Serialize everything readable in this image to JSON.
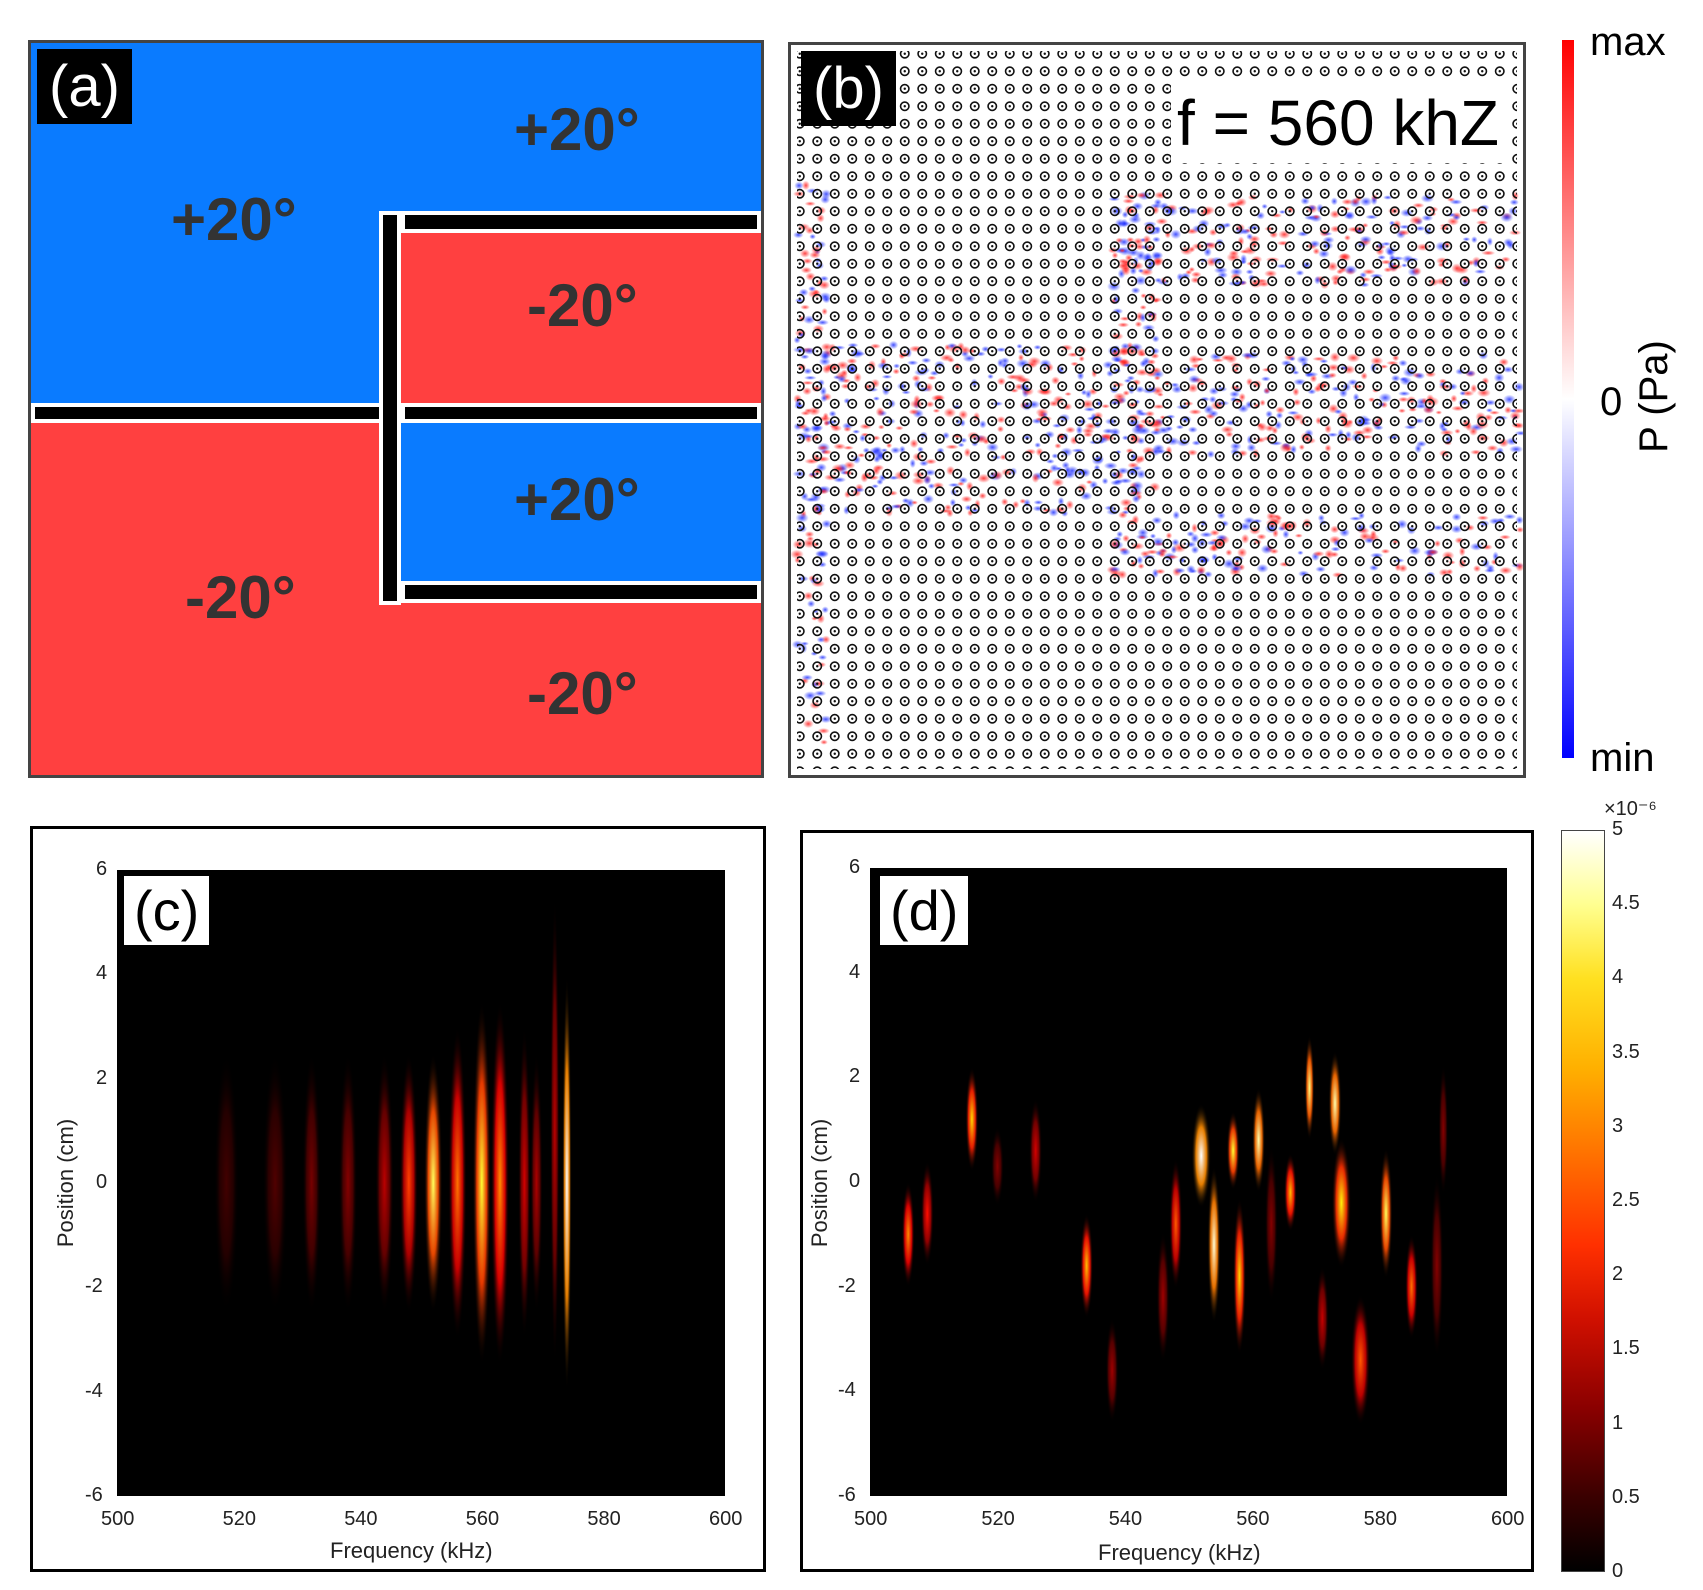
{
  "panel_a": {
    "label": "(a)",
    "angles": {
      "top_right": "+20°",
      "top_left": "+20°",
      "mid_upper": "-20°",
      "mid_lower": "+20°",
      "bottom_left": "-20°",
      "bottom_right": "-20°"
    },
    "colors": {
      "positive": "#0a7bff",
      "negative": "#ff4040"
    }
  },
  "panel_b": {
    "label": "(b)",
    "frequency_text": "f = 560 khZ"
  },
  "pressure_colorbar": {
    "max_label": "max",
    "zero_label": "0",
    "min_label": "min",
    "axis_label": "P (Pa)",
    "colors": {
      "max": "#ff0000",
      "zero": "#ffffff",
      "min": "#0000ff"
    }
  },
  "chart_data": [
    {
      "id": "c",
      "type": "heatmap",
      "panel_label": "(c)",
      "xlabel": "Frequency (kHz)",
      "ylabel": "Position (cm)",
      "xlim": [
        500,
        600
      ],
      "ylim": [
        -6,
        6
      ],
      "xticks": [
        "500",
        "520",
        "540",
        "560",
        "580",
        "600"
      ],
      "yticks": [
        "6",
        "4",
        "2",
        "0",
        "-2",
        "-4",
        "-6"
      ],
      "blobs": [
        {
          "f": 518,
          "y": 0,
          "w": 4,
          "h": 5,
          "v": 0.5
        },
        {
          "f": 526,
          "y": 0,
          "w": 4,
          "h": 5,
          "v": 0.6
        },
        {
          "f": 532,
          "y": 0,
          "w": 3,
          "h": 5,
          "v": 0.9
        },
        {
          "f": 538,
          "y": 0,
          "w": 3,
          "h": 5,
          "v": 1.0
        },
        {
          "f": 544,
          "y": 0,
          "w": 3,
          "h": 5,
          "v": 1.4
        },
        {
          "f": 548,
          "y": 0,
          "w": 3,
          "h": 5,
          "v": 2.4
        },
        {
          "f": 552,
          "y": 0,
          "w": 3,
          "h": 5,
          "v": 4.2
        },
        {
          "f": 556,
          "y": 0,
          "w": 3,
          "h": 6,
          "v": 2.8
        },
        {
          "f": 560,
          "y": 0,
          "w": 3,
          "h": 7,
          "v": 4.0
        },
        {
          "f": 563,
          "y": 0,
          "w": 3,
          "h": 7,
          "v": 3.0
        },
        {
          "f": 567,
          "y": 0,
          "w": 2,
          "h": 6,
          "v": 1.6
        },
        {
          "f": 569,
          "y": 0,
          "w": 2,
          "h": 5,
          "v": 1.3
        },
        {
          "f": 574,
          "y": 0,
          "w": 1.5,
          "h": 8,
          "v": 5.0
        },
        {
          "f": 572,
          "y": 1,
          "w": 1.5,
          "h": 9,
          "v": 1.4
        }
      ]
    },
    {
      "id": "d",
      "type": "heatmap",
      "panel_label": "(d)",
      "xlabel": "Frequency (kHz)",
      "ylabel": "Position (cm)",
      "xlim": [
        500,
        600
      ],
      "ylim": [
        -6,
        6
      ],
      "xticks": [
        "500",
        "520",
        "540",
        "560",
        "580",
        "600"
      ],
      "yticks": [
        "6",
        "4",
        "2",
        "0",
        "-2",
        "-4",
        "-6"
      ],
      "colorbar": {
        "exponent_label": "×10⁻⁶",
        "ticks": [
          "5",
          "4.5",
          "4",
          "3.5",
          "3",
          "2.5",
          "2",
          "1.5",
          "1",
          "0.5",
          "0"
        ],
        "vmin": 0,
        "vmax": 5
      },
      "blobs": [
        {
          "f": 506,
          "y": -1.0,
          "w": 2,
          "h": 2,
          "v": 3.0
        },
        {
          "f": 509,
          "y": -0.6,
          "w": 2,
          "h": 2,
          "v": 2.0
        },
        {
          "f": 516,
          "y": 1.2,
          "w": 2,
          "h": 2,
          "v": 3.6
        },
        {
          "f": 520,
          "y": 0.3,
          "w": 2,
          "h": 1.5,
          "v": 1.0
        },
        {
          "f": 526,
          "y": 0.6,
          "w": 2,
          "h": 2,
          "v": 1.6
        },
        {
          "f": 534,
          "y": -1.6,
          "w": 2,
          "h": 2,
          "v": 3.4
        },
        {
          "f": 538,
          "y": -3.6,
          "w": 2,
          "h": 2,
          "v": 1.2
        },
        {
          "f": 546,
          "y": -2.2,
          "w": 2,
          "h": 2.5,
          "v": 1.2
        },
        {
          "f": 548,
          "y": -0.8,
          "w": 2,
          "h": 2.5,
          "v": 2.6
        },
        {
          "f": 552,
          "y": 0.5,
          "w": 3,
          "h": 2,
          "v": 5.0
        },
        {
          "f": 554,
          "y": -1.2,
          "w": 2,
          "h": 3,
          "v": 4.8
        },
        {
          "f": 557,
          "y": 0.6,
          "w": 2,
          "h": 1.5,
          "v": 4.0
        },
        {
          "f": 558,
          "y": -1.8,
          "w": 2,
          "h": 3,
          "v": 3.6
        },
        {
          "f": 561,
          "y": 0.8,
          "w": 2,
          "h": 2,
          "v": 4.6
        },
        {
          "f": 563,
          "y": -0.8,
          "w": 2,
          "h": 3,
          "v": 1.0
        },
        {
          "f": 566,
          "y": -0.2,
          "w": 2,
          "h": 1.5,
          "v": 3.4
        },
        {
          "f": 569,
          "y": 1.8,
          "w": 1.5,
          "h": 2,
          "v": 4.4
        },
        {
          "f": 571,
          "y": -2.6,
          "w": 2,
          "h": 2,
          "v": 1.5
        },
        {
          "f": 573,
          "y": 1.5,
          "w": 2,
          "h": 2,
          "v": 4.6
        },
        {
          "f": 574,
          "y": -0.4,
          "w": 3,
          "h": 2.5,
          "v": 3.8
        },
        {
          "f": 577,
          "y": -3.4,
          "w": 3,
          "h": 2.5,
          "v": 2.6
        },
        {
          "f": 581,
          "y": -0.6,
          "w": 2,
          "h": 2.5,
          "v": 4.2
        },
        {
          "f": 585,
          "y": -2.0,
          "w": 2,
          "h": 2,
          "v": 2.8
        },
        {
          "f": 589,
          "y": -1.6,
          "w": 2,
          "h": 3.5,
          "v": 1.0
        },
        {
          "f": 590,
          "y": 1.0,
          "w": 1.5,
          "h": 2.5,
          "v": 1.0
        }
      ]
    }
  ]
}
